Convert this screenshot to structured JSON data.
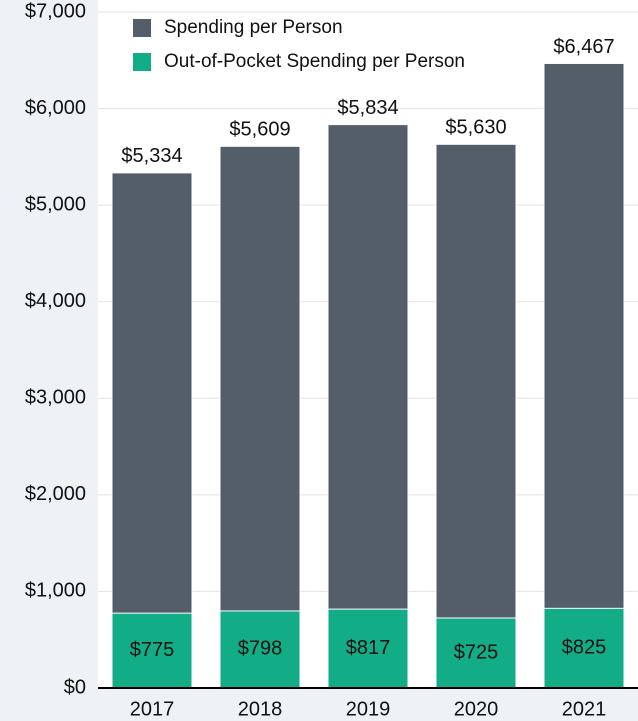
{
  "chart_data": {
    "type": "bar",
    "overlap": true,
    "categories": [
      "2017",
      "2018",
      "2019",
      "2020",
      "2021"
    ],
    "series": [
      {
        "name": "Spending per Person",
        "color": "#545e68",
        "values": [
          5334,
          5609,
          5834,
          5630,
          6467
        ],
        "value_labels": [
          "$5,334",
          "$5,609",
          "$5,834",
          "$5,630",
          "$6,467"
        ]
      },
      {
        "name": "Out-of-Pocket Spending per Person",
        "color": "#12ad86",
        "values": [
          775,
          798,
          817,
          725,
          825
        ],
        "value_labels": [
          "$775",
          "$798",
          "$817",
          "$725",
          "$825"
        ]
      }
    ],
    "ylim": [
      0,
      7000
    ],
    "yticks": [
      {
        "value": 0,
        "label": "$0"
      },
      {
        "value": 1000,
        "label": "$1,000"
      },
      {
        "value": 2000,
        "label": "$2,000"
      },
      {
        "value": 3000,
        "label": "$3,000"
      },
      {
        "value": 4000,
        "label": "$4,000"
      },
      {
        "value": 5000,
        "label": "$5,000"
      },
      {
        "value": 6000,
        "label": "$6,000"
      },
      {
        "value": 7000,
        "label": "$7,000"
      }
    ],
    "grid": true,
    "legend": "top-left"
  }
}
